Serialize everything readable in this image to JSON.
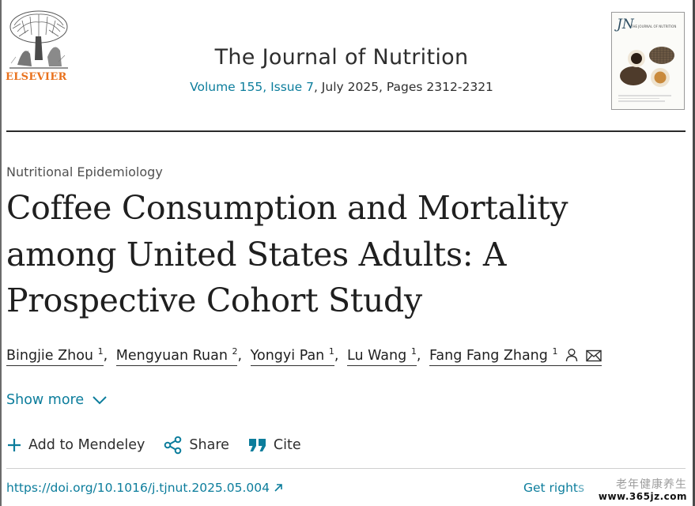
{
  "publisher": {
    "logo_text": "ELSEVIER"
  },
  "journal": {
    "name": "The Journal of Nutrition",
    "volume_issue": "Volume 155, Issue 7",
    "issue_rest": ", July 2025, Pages 2312-2321",
    "cover_abbrev": "JN",
    "cover_subtitle": "THE JOURNAL OF NUTRITION"
  },
  "article": {
    "subject": "Nutritional Epidemiology",
    "title": "Coffee Consumption and Mortality among United States Adults: A Prospective Cohort Study",
    "authors": [
      {
        "name": "Bingjie Zhou",
        "affil": "1"
      },
      {
        "name": "Mengyuan Ruan",
        "affil": "2"
      },
      {
        "name": "Yongyi Pan",
        "affil": "1"
      },
      {
        "name": "Lu Wang",
        "affil": "1"
      },
      {
        "name": "Fang Fang Zhang",
        "affil": "1"
      }
    ],
    "separator": ",",
    "icons": [
      "person-icon",
      "mail-icon"
    ]
  },
  "show_more": {
    "label": "Show more",
    "icon": "chevron-down-icon"
  },
  "actions": [
    {
      "label": "Add to Mendeley",
      "icon": "plus-icon"
    },
    {
      "label": "Share",
      "icon": "share-icon"
    },
    {
      "label": "Cite",
      "icon": "quote-icon"
    }
  ],
  "footer": {
    "doi": "https://doi.org/10.1016/j.tjnut.2025.05.004",
    "rights": "Get rights"
  },
  "watermark": {
    "top": "老年健康养生",
    "bottom": "www.365jz.com"
  },
  "colors": {
    "link": "#0c7d9c",
    "elsevier_orange": "#e9711c",
    "text": "#1f1f1f"
  }
}
